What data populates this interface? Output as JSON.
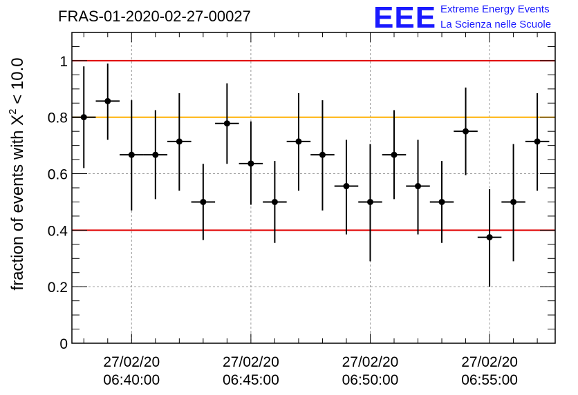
{
  "header": {
    "title": "FRAS-01-2020-02-27-00027",
    "logo": "EEE",
    "logo_line1": "Extreme Energy Events",
    "logo_line2": "La Scienza nelle Scuole"
  },
  "chart_data": {
    "type": "scatter",
    "title": "FRAS-01-2020-02-27-00027",
    "ylabel_prefix": "fraction of events with ",
    "ylabel_symbol": "X",
    "ylabel_sup": "2",
    "ylabel_suffix": " < 10.0",
    "xlim": [
      "2020-02-27 06:37:30",
      "2020-02-27 06:57:45"
    ],
    "ylim": [
      0,
      1.1
    ],
    "grid": true,
    "y_ticks": [
      {
        "value": 0,
        "label": "0"
      },
      {
        "value": 0.2,
        "label": "0.2"
      },
      {
        "value": 0.4,
        "label": "0.4"
      },
      {
        "value": 0.6,
        "label": "0.6"
      },
      {
        "value": 0.8,
        "label": "0.8"
      },
      {
        "value": 1.0,
        "label": "1"
      }
    ],
    "x_ticks": [
      {
        "value": "2020-02-27 06:40:00",
        "date": "27/02/20",
        "time": "06:40:00"
      },
      {
        "value": "2020-02-27 06:45:00",
        "date": "27/02/20",
        "time": "06:45:00"
      },
      {
        "value": "2020-02-27 06:50:00",
        "date": "27/02/20",
        "time": "06:50:00"
      },
      {
        "value": "2020-02-27 06:55:00",
        "date": "27/02/20",
        "time": "06:55:00"
      }
    ],
    "reference_lines": [
      {
        "y": 1.0,
        "color": "#e00000"
      },
      {
        "y": 0.8,
        "color": "#ffb000"
      },
      {
        "y": 0.4,
        "color": "#e00000"
      }
    ],
    "series": [
      {
        "color": "#000000",
        "points": [
          {
            "x": "2020-02-27 06:38:00",
            "y": 0.8,
            "lo": 0.62,
            "hi": 0.98
          },
          {
            "x": "2020-02-27 06:39:00",
            "y": 0.857,
            "lo": 0.72,
            "hi": 0.99
          },
          {
            "x": "2020-02-27 06:40:00",
            "y": 0.667,
            "lo": 0.47,
            "hi": 0.86
          },
          {
            "x": "2020-02-27 06:41:00",
            "y": 0.667,
            "lo": 0.51,
            "hi": 0.825
          },
          {
            "x": "2020-02-27 06:42:00",
            "y": 0.714,
            "lo": 0.54,
            "hi": 0.885
          },
          {
            "x": "2020-02-27 06:43:00",
            "y": 0.5,
            "lo": 0.365,
            "hi": 0.635
          },
          {
            "x": "2020-02-27 06:44:00",
            "y": 0.778,
            "lo": 0.635,
            "hi": 0.92
          },
          {
            "x": "2020-02-27 06:45:00",
            "y": 0.636,
            "lo": 0.49,
            "hi": 0.785
          },
          {
            "x": "2020-02-27 06:46:00",
            "y": 0.5,
            "lo": 0.355,
            "hi": 0.645
          },
          {
            "x": "2020-02-27 06:47:00",
            "y": 0.714,
            "lo": 0.54,
            "hi": 0.885
          },
          {
            "x": "2020-02-27 06:48:00",
            "y": 0.667,
            "lo": 0.47,
            "hi": 0.86
          },
          {
            "x": "2020-02-27 06:49:00",
            "y": 0.556,
            "lo": 0.385,
            "hi": 0.72
          },
          {
            "x": "2020-02-27 06:50:00",
            "y": 0.5,
            "lo": 0.29,
            "hi": 0.705
          },
          {
            "x": "2020-02-27 06:51:00",
            "y": 0.667,
            "lo": 0.51,
            "hi": 0.825
          },
          {
            "x": "2020-02-27 06:52:00",
            "y": 0.556,
            "lo": 0.385,
            "hi": 0.72
          },
          {
            "x": "2020-02-27 06:53:00",
            "y": 0.5,
            "lo": 0.355,
            "hi": 0.645
          },
          {
            "x": "2020-02-27 06:54:00",
            "y": 0.75,
            "lo": 0.595,
            "hi": 0.905
          },
          {
            "x": "2020-02-27 06:55:00",
            "y": 0.375,
            "lo": 0.2,
            "hi": 0.545
          },
          {
            "x": "2020-02-27 06:56:00",
            "y": 0.5,
            "lo": 0.29,
            "hi": 0.705
          },
          {
            "x": "2020-02-27 06:57:00",
            "y": 0.714,
            "lo": 0.54,
            "hi": 0.885
          }
        ]
      }
    ]
  }
}
